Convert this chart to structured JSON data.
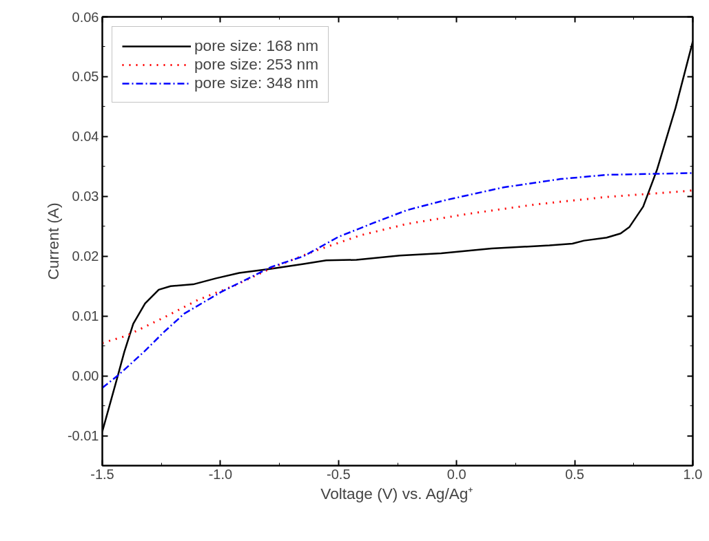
{
  "chart_data": {
    "type": "line",
    "xlabel": "Voltage (V) vs. Ag/Ag⁺",
    "ylabel": "Current (A)",
    "xlim": [
      -1.5,
      1.0
    ],
    "ylim": [
      -0.015,
      0.06
    ],
    "xticks": [
      {
        "value": -1.5,
        "label": "-1.5"
      },
      {
        "value": -1.0,
        "label": "-1.0"
      },
      {
        "value": -0.5,
        "label": "-0.5"
      },
      {
        "value": 0.0,
        "label": "0.0"
      },
      {
        "value": 0.5,
        "label": "0.5"
      },
      {
        "value": 1.0,
        "label": "1.0"
      }
    ],
    "yticks": [
      {
        "value": -0.01,
        "label": "-0.01"
      },
      {
        "value": 0.0,
        "label": "0.00"
      },
      {
        "value": 0.01,
        "label": "0.01"
      },
      {
        "value": 0.02,
        "label": "0.02"
      },
      {
        "value": 0.03,
        "label": "0.03"
      },
      {
        "value": 0.04,
        "label": "0.04"
      },
      {
        "value": 0.05,
        "label": "0.05"
      },
      {
        "value": 0.06,
        "label": "0.06"
      }
    ],
    "grid": false,
    "legend": "top left",
    "series": [
      {
        "name": "pore size: 168 nm",
        "color": "#000000",
        "line_style": "solid",
        "x": [
          -1.5,
          -1.436,
          -1.407,
          -1.369,
          -1.319,
          -1.261,
          -1.211,
          -1.115,
          -1.019,
          -0.92,
          -0.785,
          -0.648,
          -0.552,
          -0.424,
          -0.24,
          -0.065,
          0.148,
          0.393,
          0.49,
          0.539,
          0.635,
          0.694,
          0.732,
          0.79,
          0.848,
          0.927,
          1.0
        ],
        "values": [
          -0.0093,
          -0.0002,
          0.004,
          0.0087,
          0.0121,
          0.0144,
          0.015,
          0.0153,
          0.0163,
          0.0172,
          0.0179,
          0.0187,
          0.0193,
          0.0194,
          0.0201,
          0.0205,
          0.0213,
          0.0218,
          0.0221,
          0.0226,
          0.0231,
          0.0238,
          0.0249,
          0.0283,
          0.0344,
          0.0448,
          0.0559
        ]
      },
      {
        "name": "pore size: 253 nm",
        "color": "#ff0000",
        "line_style": "dotted",
        "x": [
          -1.5,
          -1.398,
          -1.232,
          -1.095,
          -0.94,
          -0.785,
          -0.599,
          -0.406,
          -0.21,
          0.052,
          0.344,
          0.635,
          0.977,
          1.0
        ],
        "values": [
          0.0055,
          0.0067,
          0.0099,
          0.0127,
          0.0151,
          0.018,
          0.0209,
          0.0235,
          0.0254,
          0.0271,
          0.0287,
          0.0299,
          0.0309,
          0.031
        ]
      },
      {
        "name": "pore size: 348 nm",
        "color": "#0000ff",
        "line_style": "dashdot",
        "x": [
          -1.5,
          -1.436,
          -1.377,
          -1.319,
          -1.24,
          -1.153,
          -0.998,
          -0.785,
          -0.648,
          -0.502,
          -0.356,
          -0.21,
          -0.044,
          0.198,
          0.44,
          0.635,
          1.0
        ],
        "values": [
          -0.002,
          0.0,
          0.0021,
          0.0042,
          0.0073,
          0.0104,
          0.014,
          0.0182,
          0.02,
          0.0232,
          0.0255,
          0.0277,
          0.0294,
          0.0315,
          0.0329,
          0.0336,
          0.0339
        ]
      }
    ]
  }
}
